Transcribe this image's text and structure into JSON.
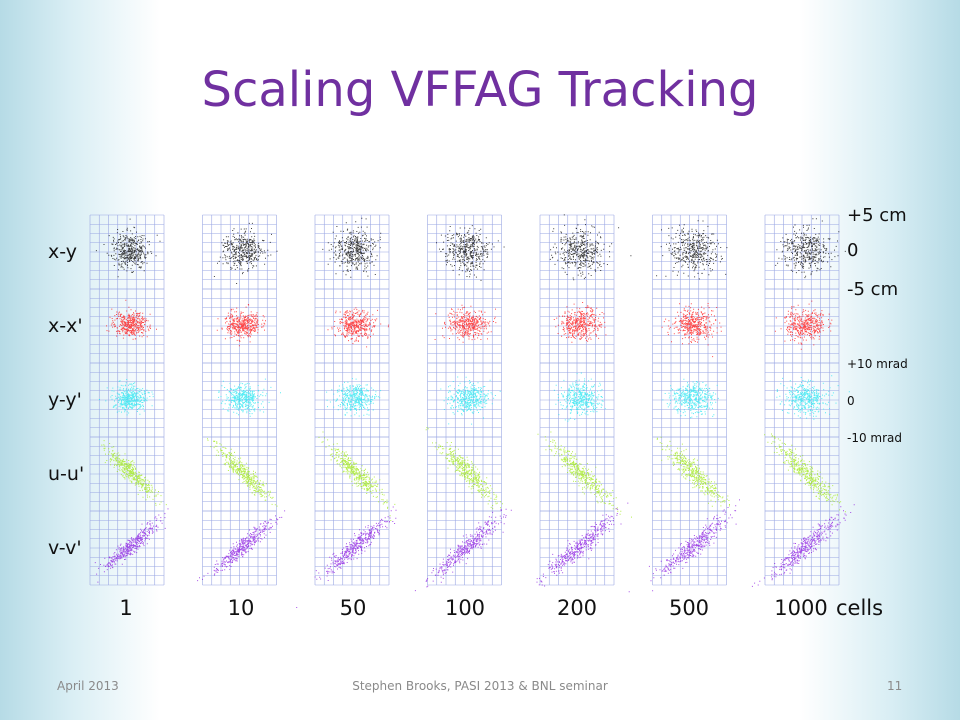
{
  "slide": {
    "title": "Scaling VFFAG Tracking",
    "row_labels": [
      "x-y",
      "x-x'",
      "y-y'",
      "u-u'",
      "v-v'"
    ],
    "row_colors": [
      "#000000",
      "#ff1010",
      "#22e6f0",
      "#9de812",
      "#8a17e0"
    ],
    "column_labels": [
      "1",
      "10",
      "50",
      "100",
      "200",
      "500",
      "1000"
    ],
    "cells_label": "cells",
    "position_units": [
      "+5 cm",
      "0",
      "-5 cm"
    ],
    "angle_units": [
      "+10 mrad",
      "0",
      "-10 mrad"
    ],
    "footer": {
      "date": "April 2013",
      "center": "Stephen Brooks, PASI 2013 & BNL seminar",
      "page": "11"
    }
  }
}
